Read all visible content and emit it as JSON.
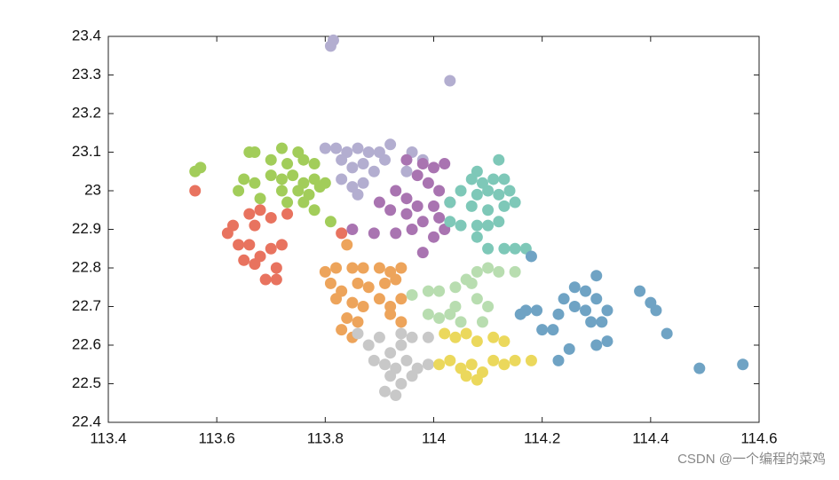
{
  "chart_data": {
    "type": "scatter",
    "xlim": [
      113.4,
      114.6
    ],
    "xticks": [
      113.4,
      113.6,
      113.8,
      114,
      114.2,
      114.4,
      114.6
    ],
    "ylim": [
      22.4,
      23.4
    ],
    "yticks": [
      22.4,
      22.5,
      22.6,
      22.7,
      22.8,
      22.9,
      23,
      23.1,
      23.2,
      23.3,
      23.4
    ],
    "series": [
      {
        "color": "#b3aed0",
        "x": [
          113.815,
          113.81,
          114.03,
          113.8,
          113.82,
          113.84,
          113.86,
          113.88,
          113.9,
          113.83,
          113.85,
          113.87,
          113.89,
          113.91,
          113.83,
          113.85,
          113.87,
          113.86,
          113.92,
          113.96,
          113.98,
          113.95
        ],
        "y": [
          23.39,
          23.375,
          23.285,
          23.11,
          23.11,
          23.1,
          23.11,
          23.1,
          23.1,
          23.08,
          23.06,
          23.07,
          23.05,
          23.08,
          23.03,
          23.01,
          23.02,
          22.99,
          23.12,
          23.1,
          23.08,
          23.05
        ]
      },
      {
        "color": "#a974b1",
        "x": [
          113.95,
          113.98,
          114.0,
          114.02,
          113.97,
          113.99,
          114.01,
          113.93,
          113.95,
          113.97,
          114.0,
          114.03,
          113.9,
          113.92,
          113.95,
          113.98,
          114.01,
          113.89,
          113.93,
          113.96,
          114.0,
          114.02,
          113.98,
          113.85
        ],
        "y": [
          23.08,
          23.07,
          23.06,
          23.07,
          23.04,
          23.02,
          23.0,
          23.0,
          22.98,
          22.96,
          22.96,
          22.97,
          22.97,
          22.95,
          22.94,
          22.92,
          22.93,
          22.89,
          22.89,
          22.9,
          22.88,
          22.9,
          22.84,
          22.9
        ]
      },
      {
        "color": "#a2cd5a",
        "x": [
          113.57,
          113.56,
          113.66,
          113.67,
          113.72,
          113.75,
          113.7,
          113.73,
          113.76,
          113.78,
          113.7,
          113.72,
          113.74,
          113.76,
          113.78,
          113.8,
          113.72,
          113.75,
          113.77,
          113.79,
          113.65,
          113.67,
          113.64,
          113.68,
          113.73,
          113.76,
          113.78,
          113.81
        ],
        "y": [
          23.06,
          23.05,
          23.1,
          23.1,
          23.11,
          23.1,
          23.08,
          23.07,
          23.08,
          23.07,
          23.04,
          23.03,
          23.04,
          23.02,
          23.03,
          23.02,
          23.0,
          23.0,
          22.99,
          23.01,
          23.03,
          23.02,
          23.0,
          22.98,
          22.97,
          22.97,
          22.95,
          22.92
        ]
      },
      {
        "color": "#e8735f",
        "x": [
          113.56,
          113.63,
          113.62,
          113.66,
          113.68,
          113.7,
          113.73,
          113.67,
          113.64,
          113.66,
          113.7,
          113.72,
          113.65,
          113.68,
          113.71,
          113.67,
          113.69,
          113.71,
          113.83
        ],
        "y": [
          23.0,
          22.91,
          22.89,
          22.94,
          22.95,
          22.93,
          22.94,
          22.91,
          22.86,
          22.86,
          22.85,
          22.86,
          22.82,
          22.83,
          22.8,
          22.81,
          22.77,
          22.77,
          22.89
        ]
      },
      {
        "color": "#eda45b",
        "x": [
          113.8,
          113.82,
          113.85,
          113.87,
          113.84,
          113.9,
          113.92,
          113.94,
          113.81,
          113.83,
          113.86,
          113.88,
          113.91,
          113.93,
          113.82,
          113.85,
          113.87,
          113.9,
          113.92,
          113.94,
          113.84,
          113.86,
          113.92,
          113.94,
          113.83,
          113.85
        ],
        "y": [
          22.79,
          22.8,
          22.8,
          22.8,
          22.86,
          22.8,
          22.79,
          22.8,
          22.76,
          22.74,
          22.76,
          22.75,
          22.76,
          22.77,
          22.72,
          22.71,
          22.7,
          22.72,
          22.7,
          22.72,
          22.67,
          22.66,
          22.68,
          22.66,
          22.64,
          22.62
        ]
      },
      {
        "color": "#c8c8c8",
        "x": [
          113.86,
          113.88,
          113.9,
          113.92,
          113.94,
          113.96,
          113.89,
          113.91,
          113.93,
          113.95,
          113.97,
          113.99,
          113.92,
          113.94,
          113.96,
          113.91,
          113.93,
          113.94,
          113.99
        ],
        "y": [
          22.63,
          22.6,
          22.62,
          22.58,
          22.6,
          22.62,
          22.56,
          22.55,
          22.54,
          22.56,
          22.54,
          22.55,
          22.52,
          22.5,
          22.52,
          22.48,
          22.47,
          22.63,
          22.62
        ]
      },
      {
        "color": "#ebd85c",
        "x": [
          114.02,
          114.04,
          114.06,
          114.08,
          114.11,
          114.13,
          114.01,
          114.03,
          114.05,
          114.07,
          114.09,
          114.11,
          114.13,
          114.15,
          114.18,
          114.06,
          114.08
        ],
        "y": [
          22.63,
          22.62,
          22.63,
          22.61,
          22.62,
          22.61,
          22.55,
          22.56,
          22.54,
          22.55,
          22.53,
          22.56,
          22.55,
          22.56,
          22.56,
          22.52,
          22.51
        ]
      },
      {
        "color": "#b8ddb0",
        "x": [
          113.96,
          113.99,
          114.01,
          114.04,
          114.06,
          114.08,
          114.1,
          114.12,
          114.07,
          114.15,
          114.08,
          114.1,
          113.99,
          114.01,
          114.03,
          114.05,
          114.09,
          114.04
        ],
        "y": [
          22.73,
          22.74,
          22.74,
          22.75,
          22.77,
          22.79,
          22.8,
          22.79,
          22.76,
          22.79,
          22.72,
          22.7,
          22.68,
          22.67,
          22.68,
          22.66,
          22.66,
          22.7
        ]
      },
      {
        "color": "#7ec8b8",
        "x": [
          114.08,
          114.07,
          114.09,
          114.11,
          114.13,
          114.12,
          114.05,
          114.08,
          114.1,
          114.12,
          114.14,
          114.15,
          114.03,
          114.07,
          114.1,
          114.13,
          114.03,
          114.05,
          114.08,
          114.1,
          114.12,
          114.08,
          114.13,
          114.15,
          114.17,
          114.1
        ],
        "y": [
          23.05,
          23.03,
          23.02,
          23.03,
          23.03,
          23.08,
          23.0,
          22.99,
          23.0,
          22.99,
          23.0,
          22.97,
          22.97,
          22.96,
          22.95,
          22.96,
          22.92,
          22.91,
          22.91,
          22.91,
          22.92,
          22.88,
          22.85,
          22.85,
          22.85,
          22.85
        ]
      },
      {
        "color": "#6fa3c4",
        "x": [
          114.18,
          114.16,
          114.17,
          114.19,
          114.2,
          114.22,
          114.23,
          114.24,
          114.26,
          114.28,
          114.3,
          114.3,
          114.26,
          114.28,
          114.32,
          114.29,
          114.31,
          114.23,
          114.25,
          114.3,
          114.32,
          114.38,
          114.4,
          114.41,
          114.43,
          114.49,
          114.57
        ],
        "y": [
          22.83,
          22.68,
          22.69,
          22.69,
          22.64,
          22.64,
          22.68,
          22.72,
          22.75,
          22.74,
          22.72,
          22.78,
          22.7,
          22.69,
          22.69,
          22.66,
          22.66,
          22.56,
          22.59,
          22.6,
          22.61,
          22.74,
          22.71,
          22.69,
          22.63,
          22.54,
          22.55
        ]
      }
    ],
    "watermark": "CSDN @一个编程的菜鸡"
  }
}
